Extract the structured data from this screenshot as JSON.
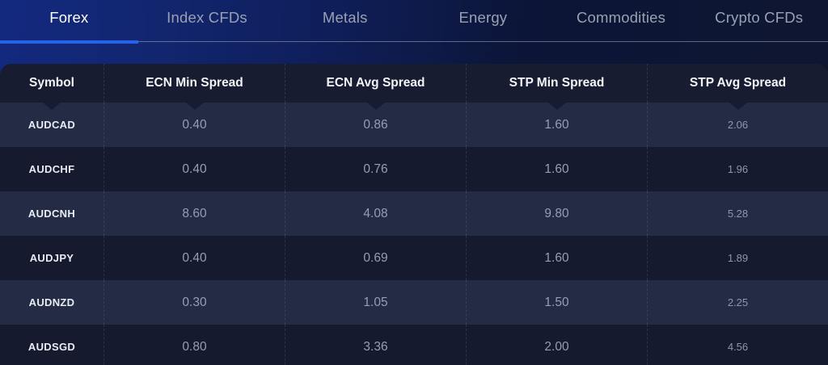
{
  "colors": {
    "active_tab_underline": "#2563eb",
    "tab_inactive_text": "#99a1b1",
    "header_bg": "#171c30",
    "row_light_bg": "#242b44",
    "row_dark_bg": "#151a2f"
  },
  "tabs": [
    {
      "label": "Forex",
      "active": true
    },
    {
      "label": "Index CFDs",
      "active": false
    },
    {
      "label": "Metals",
      "active": false
    },
    {
      "label": "Energy",
      "active": false
    },
    {
      "label": "Commodities",
      "active": false
    },
    {
      "label": "Crypto CFDs",
      "active": false
    }
  ],
  "table": {
    "columns": [
      "Symbol",
      "ECN Min Spread",
      "ECN Avg Spread",
      "STP Min Spread",
      "STP Avg Spread"
    ],
    "rows": [
      {
        "symbol": "AUDCAD",
        "values": [
          "0.40",
          "0.86",
          "1.60",
          "2.06"
        ]
      },
      {
        "symbol": "AUDCHF",
        "values": [
          "0.40",
          "0.76",
          "1.60",
          "1.96"
        ]
      },
      {
        "symbol": "AUDCNH",
        "values": [
          "8.60",
          "4.08",
          "9.80",
          "5.28"
        ]
      },
      {
        "symbol": "AUDJPY",
        "values": [
          "0.40",
          "0.69",
          "1.60",
          "1.89"
        ]
      },
      {
        "symbol": "AUDNZD",
        "values": [
          "0.30",
          "1.05",
          "1.50",
          "2.25"
        ]
      },
      {
        "symbol": "AUDSGD",
        "values": [
          "0.80",
          "3.36",
          "2.00",
          "4.56"
        ]
      }
    ]
  }
}
